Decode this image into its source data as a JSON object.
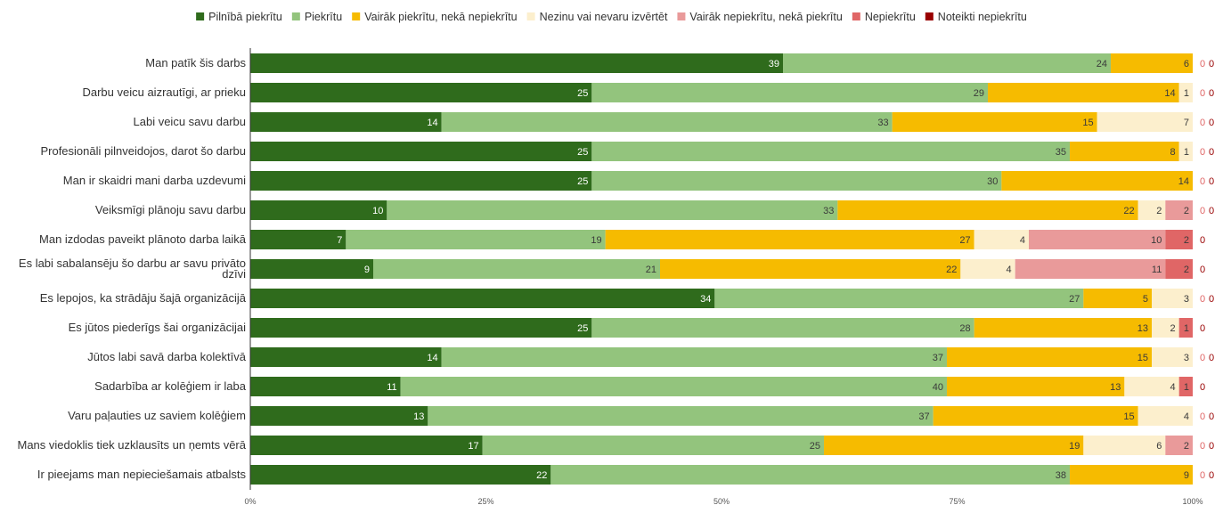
{
  "chart_data": {
    "type": "bar",
    "orientation": "horizontal",
    "stacked": "percent",
    "legend_position": "top",
    "grid": false,
    "xlim": [
      0,
      100
    ],
    "x_ticks": [
      "0%",
      "25%",
      "50%",
      "75%",
      "100%"
    ],
    "categories": [
      "Man patīk šis darbs",
      "Darbu veicu aizrautīgi, ar prieku",
      "Labi veicu savu darbu",
      "Profesionāli pilnveidojos, darot šo darbu",
      "Man ir skaidri mani darba uzdevumi",
      "Veiksmīgi plānoju savu darbu",
      "Man izdodas paveikt plānoto darba laikā",
      "Es labi sabalansēju šo darbu ar savu privāto dzīvi",
      "Es lepojos, ka strādāju šajā organizācijā",
      "Es jūtos piederīgs šai organizācijai",
      "Jūtos labi savā darba kolektīvā",
      "Sadarbība ar kolēģiem ir laba",
      "Varu paļauties uz saviem kolēģiem",
      "Mans viedoklis tiek uzklausīts un ņemts vērā",
      "Ir pieejams man nepieciešamais atbalsts"
    ],
    "series": [
      {
        "name": "Pilnībā piekrītu",
        "color": "#2f6b1c",
        "label_color": "#ffffff",
        "values": [
          39,
          25,
          14,
          25,
          25,
          10,
          7,
          9,
          34,
          25,
          14,
          11,
          13,
          17,
          22
        ]
      },
      {
        "name": "Piekrītu",
        "color": "#93c47d",
        "label_color": "#3a3a3a",
        "values": [
          24,
          29,
          33,
          35,
          30,
          33,
          19,
          21,
          27,
          28,
          37,
          40,
          37,
          25,
          38
        ]
      },
      {
        "name": "Vairāk piekrītu, nekā nepiekrītu",
        "color": "#f6bb00",
        "label_color": "#3a3a3a",
        "values": [
          6,
          14,
          15,
          8,
          14,
          22,
          27,
          22,
          5,
          13,
          15,
          13,
          15,
          19,
          9
        ]
      },
      {
        "name": "Nezinu vai nevaru izvērtēt",
        "color": "#fcefcd",
        "label_color": "#3a3a3a",
        "values": [
          0,
          1,
          7,
          1,
          0,
          2,
          4,
          4,
          3,
          2,
          3,
          4,
          4,
          6,
          0
        ]
      },
      {
        "name": "Vairāk nepiekrītu, nekā piekrītu",
        "color": "#e99a9a",
        "label_color": "#3a3a3a",
        "values": [
          0,
          0,
          0,
          0,
          0,
          2,
          10,
          11,
          0,
          0,
          0,
          0,
          0,
          2,
          0
        ]
      },
      {
        "name": "Nepiekrītu",
        "color": "#e06666",
        "label_color": "#3a3a3a",
        "values": [
          0,
          0,
          0,
          0,
          0,
          0,
          2,
          2,
          0,
          1,
          0,
          1,
          0,
          0,
          0
        ]
      },
      {
        "name": "Noteikti nepiekrītu",
        "color": "#990000",
        "label_color": "#3a3a3a",
        "values": [
          0,
          0,
          0,
          0,
          0,
          0,
          0,
          0,
          0,
          0,
          0,
          0,
          0,
          0,
          0
        ]
      }
    ]
  }
}
